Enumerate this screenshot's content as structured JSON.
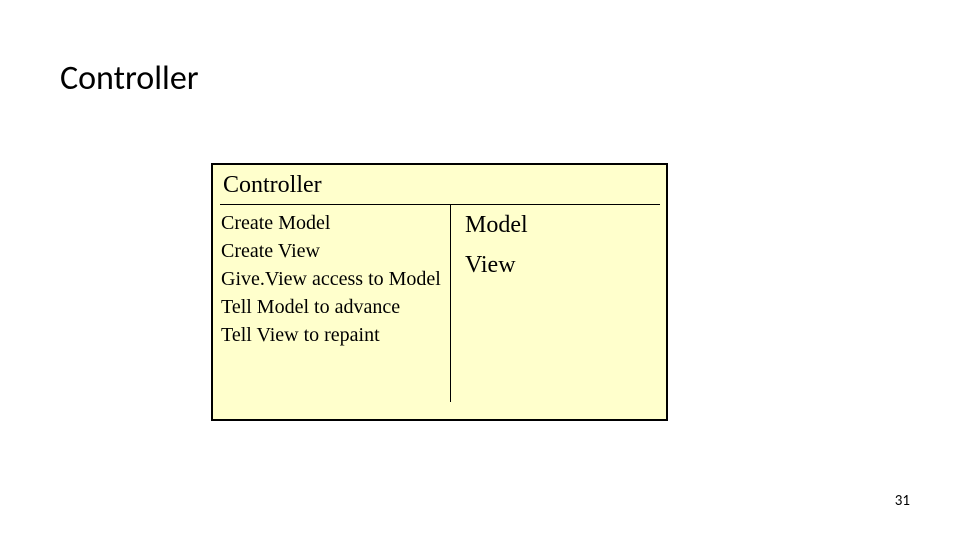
{
  "slide": {
    "title": "Controller",
    "pageNumber": "31"
  },
  "diagram": {
    "header": "Controller",
    "leftItems": [
      "Create Model",
      "Create View",
      "Give.View access to Model",
      "Tell Model to advance",
      "Tell View to repaint"
    ],
    "rightItems": [
      "Model",
      "View"
    ],
    "style": {
      "backgroundColor": "#ffffcc",
      "borderColor": "#000000",
      "headerFontSize": 24,
      "leftFontSize": 20,
      "rightFontSize": 24,
      "fontFamily": "Times New Roman"
    }
  }
}
